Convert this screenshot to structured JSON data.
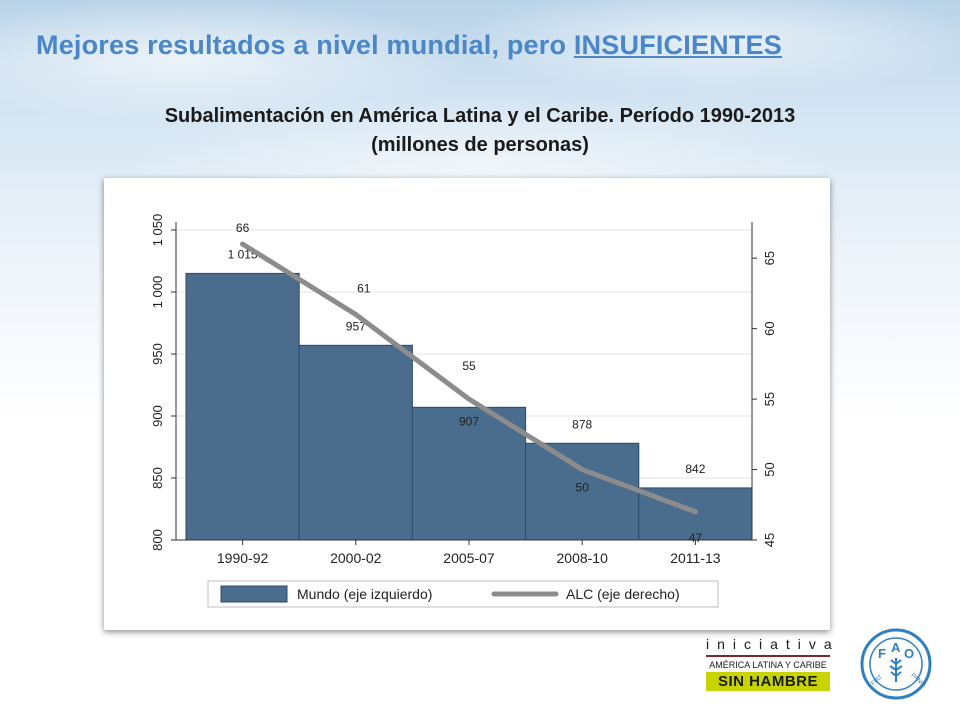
{
  "header": {
    "title_prefix": "Mejores resultados a nivel mundial, pero ",
    "title_highlight": "INSUFICIENTES"
  },
  "chart_title": {
    "line1": "Subalimentación en América Latina y el Caribe. Período 1990-2013",
    "line2": "(millones de personas)"
  },
  "colors": {
    "title": "#4a86c8",
    "bar": "#4a6d8e",
    "line": "#8c8c8c"
  },
  "chart_data": {
    "type": "bar",
    "categories": [
      "1990-92",
      "2000-02",
      "2005-07",
      "2008-10",
      "2011-13"
    ],
    "series": [
      {
        "name": "Mundo (eje izquierdo)",
        "type": "bar",
        "axis": "left",
        "values": [
          1015,
          957,
          907,
          878,
          842
        ],
        "labels": [
          "1 015",
          "957",
          "907",
          "878",
          "842"
        ]
      },
      {
        "name": "ALC (eje derecho)",
        "type": "line",
        "axis": "right",
        "values": [
          66,
          61,
          55,
          50,
          47
        ],
        "labels": [
          "66",
          "61",
          "55",
          "50",
          "47"
        ]
      }
    ],
    "y_left": {
      "range": [
        800,
        1050
      ],
      "ticks": [
        800,
        850,
        900,
        950,
        1000,
        1050
      ],
      "tick_labels": [
        "800",
        "850",
        "900",
        "950",
        "1 000",
        "1 050"
      ]
    },
    "y_right": {
      "range": [
        45,
        67
      ],
      "ticks": [
        45,
        50,
        55,
        60,
        65
      ],
      "tick_labels": [
        "45",
        "50",
        "55",
        "60",
        "65"
      ]
    },
    "grid": "horizontal",
    "legend_position": "bottom"
  },
  "logos": {
    "iniciativa_word": "iniciativa",
    "iniciativa_line1": "AMÉRICA LATINA Y CARIBE",
    "iniciativa_line2": "SIN HAMBRE",
    "fao_text": "FAO",
    "fao_motto": "FIAT PANIS"
  }
}
